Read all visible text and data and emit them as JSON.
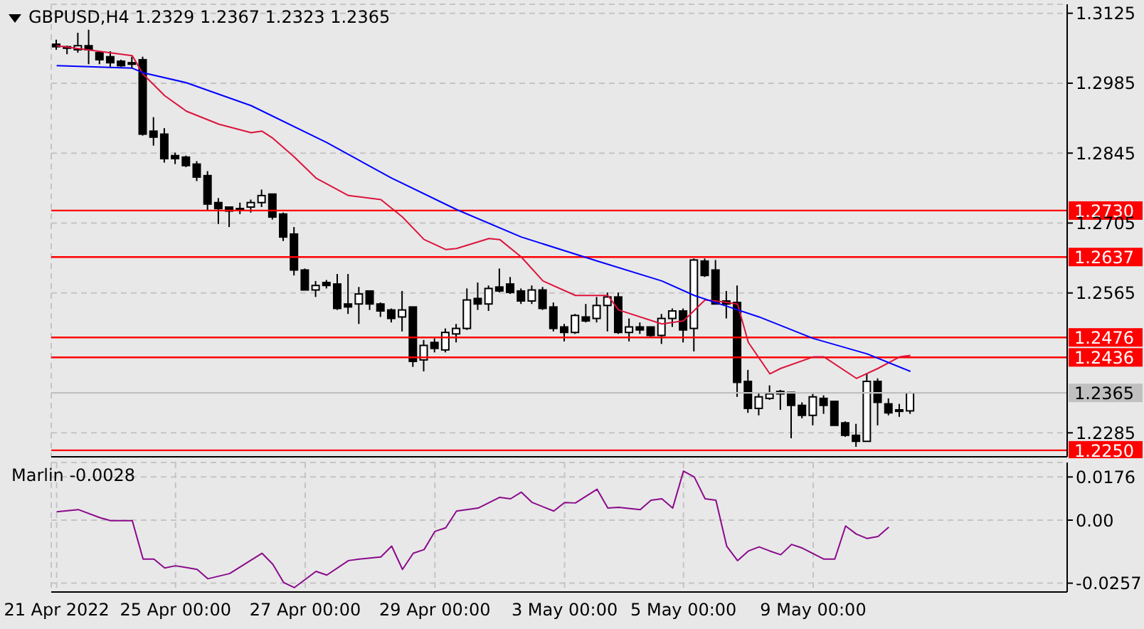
{
  "chart_data": [
    {
      "type": "candlestick",
      "title": "GBPUSD,H4 1.2329 1.2367 1.2323 1.2365",
      "categories": [
        null,
        null,
        null,
        null,
        null,
        null,
        null,
        null,
        null,
        null,
        null,
        null,
        null,
        null,
        null,
        null,
        null,
        null,
        null,
        null,
        null,
        null,
        null,
        null,
        null,
        null,
        null,
        null,
        null,
        null,
        null,
        null,
        null,
        null,
        null,
        null,
        null,
        null,
        null,
        null,
        null,
        null,
        null,
        null,
        null,
        null,
        null,
        null,
        null,
        null,
        null,
        null,
        null,
        null,
        null,
        null,
        null,
        null,
        null,
        null,
        null,
        null,
        null,
        null,
        null,
        null,
        null,
        null,
        null,
        null,
        null,
        null,
        null,
        null,
        null,
        null,
        null,
        null,
        null,
        null,
        null,
        null,
        null,
        null,
        null,
        null,
        null,
        null,
        null,
        null,
        null,
        null,
        null,
        null
      ],
      "ohlc": [
        [
          1.3063,
          1.3072,
          1.3052,
          1.3058
        ],
        [
          1.3058,
          1.306,
          1.3043,
          1.3055
        ],
        [
          1.3052,
          1.3086,
          1.3046,
          1.306
        ],
        [
          1.306,
          1.3092,
          1.3023,
          1.3052
        ],
        [
          1.3046,
          1.3049,
          1.3023,
          1.3032
        ],
        [
          1.3038,
          1.3049,
          1.3018,
          1.3026
        ],
        [
          1.3029,
          1.3032,
          1.3018,
          1.302
        ],
        [
          1.3026,
          1.3038,
          1.3015,
          1.3023
        ],
        [
          1.3032,
          1.3038,
          1.288,
          1.2883
        ],
        [
          1.2889,
          1.2917,
          1.286,
          1.2877
        ],
        [
          1.2883,
          1.2895,
          1.2826,
          1.2834
        ],
        [
          1.284,
          1.2846,
          1.2823,
          1.2834
        ],
        [
          1.2837,
          1.284,
          1.2817,
          1.282
        ],
        [
          1.2823,
          1.2829,
          1.2789,
          1.2797
        ],
        [
          1.28,
          1.2809,
          1.2729,
          1.2743
        ],
        [
          1.2746,
          1.2755,
          1.2703,
          1.2734
        ],
        [
          1.2737,
          1.2737,
          1.2697,
          1.2729
        ],
        [
          1.2732,
          1.2746,
          1.2723,
          1.2734
        ],
        [
          1.2737,
          1.2752,
          1.2726,
          1.2746
        ],
        [
          1.2746,
          1.2772,
          1.2737,
          1.276
        ],
        [
          1.2763,
          1.2763,
          1.2712,
          1.2717
        ],
        [
          1.2723,
          1.2726,
          1.2669,
          1.2677
        ],
        [
          1.2683,
          1.2697,
          1.26,
          1.2611
        ],
        [
          1.2611,
          1.2614,
          1.2571,
          1.2571
        ],
        [
          1.2571,
          1.2589,
          1.2557,
          1.258
        ],
        [
          1.2586,
          1.2591,
          1.2574,
          1.258
        ],
        [
          1.2583,
          1.2603,
          1.2531,
          1.2534
        ],
        [
          1.2543,
          1.2603,
          1.2523,
          1.2537
        ],
        [
          1.2543,
          1.2577,
          1.2503,
          1.2563
        ],
        [
          1.2569,
          1.2569,
          1.2531,
          1.2543
        ],
        [
          1.2543,
          1.2546,
          1.2517,
          1.2529
        ],
        [
          1.2531,
          1.2534,
          1.2506,
          1.2514
        ],
        [
          1.2517,
          1.2569,
          1.2488,
          1.2531
        ],
        [
          1.2537,
          1.2537,
          1.2417,
          1.2428
        ],
        [
          1.2431,
          1.2471,
          1.2408,
          1.246
        ],
        [
          1.2466,
          1.2474,
          1.2446,
          1.2454
        ],
        [
          1.2451,
          1.2494,
          1.2446,
          1.2486
        ],
        [
          1.2483,
          1.2503,
          1.2466,
          1.2494
        ],
        [
          1.2494,
          1.2574,
          1.2491,
          1.2551
        ],
        [
          1.2554,
          1.2586,
          1.2531,
          1.2543
        ],
        [
          1.2543,
          1.258,
          1.2529,
          1.2574
        ],
        [
          1.2577,
          1.2614,
          1.2566,
          1.2569
        ],
        [
          1.2583,
          1.2597,
          1.2563,
          1.2566
        ],
        [
          1.2569,
          1.2574,
          1.2543,
          1.2549
        ],
        [
          1.2549,
          1.258,
          1.2543,
          1.2571
        ],
        [
          1.2571,
          1.2577,
          1.2531,
          1.2534
        ],
        [
          1.2537,
          1.2546,
          1.2488,
          1.2494
        ],
        [
          1.2497,
          1.2503,
          1.2468,
          1.2486
        ],
        [
          1.2486,
          1.2523,
          1.2483,
          1.252
        ],
        [
          1.2517,
          1.2543,
          1.2506,
          1.2509
        ],
        [
          1.2514,
          1.2557,
          1.2506,
          1.254
        ],
        [
          1.254,
          1.2566,
          1.2488,
          1.2557
        ],
        [
          1.2557,
          1.2566,
          1.2483,
          1.2486
        ],
        [
          1.2486,
          1.2514,
          1.2468,
          1.2497
        ],
        [
          1.2497,
          1.2506,
          1.2483,
          1.2491
        ],
        [
          1.2497,
          1.2497,
          1.2477,
          1.248
        ],
        [
          1.248,
          1.2523,
          1.2463,
          1.2514
        ],
        [
          1.2514,
          1.2534,
          1.2497,
          1.2529
        ],
        [
          1.2529,
          1.2534,
          1.2466,
          1.2491
        ],
        [
          1.2494,
          1.2634,
          1.2448,
          1.2631
        ],
        [
          1.2629,
          1.2634,
          1.2597,
          1.26
        ],
        [
          1.2611,
          1.2631,
          1.2543,
          1.2543
        ],
        [
          1.2549,
          1.2569,
          1.2514,
          1.2543
        ],
        [
          1.2546,
          1.258,
          1.2357,
          1.2386
        ],
        [
          1.2388,
          1.2411,
          1.2325,
          1.2334
        ],
        [
          1.2334,
          1.2366,
          1.232,
          1.2357
        ],
        [
          1.2354,
          1.238,
          1.2351,
          1.2363
        ],
        [
          1.2368,
          1.2371,
          1.2331,
          1.2363
        ],
        [
          1.2366,
          1.2366,
          1.2274,
          1.234
        ],
        [
          1.234,
          1.2346,
          1.2314,
          1.232
        ],
        [
          1.232,
          1.2363,
          1.23,
          1.2357
        ],
        [
          1.2354,
          1.236,
          1.2323,
          1.234
        ],
        [
          1.2348,
          1.2348,
          1.23,
          1.23
        ],
        [
          1.2305,
          1.2308,
          1.2277,
          1.228
        ],
        [
          1.228,
          1.2303,
          1.2257,
          1.2268
        ],
        [
          1.2268,
          1.2403,
          1.2268,
          1.2388
        ],
        [
          1.2388,
          1.2394,
          1.23,
          1.2346
        ],
        [
          1.2343,
          1.2354,
          1.232,
          1.2325
        ],
        [
          1.2331,
          1.2343,
          1.2317,
          1.2328
        ],
        [
          1.2329,
          1.2367,
          1.2323,
          1.2365
        ],
        null,
        null,
        null,
        null,
        null,
        null,
        null,
        null,
        null,
        null,
        null,
        null,
        null,
        null
      ],
      "series": [
        {
          "type": "line",
          "color": "#dc143c",
          "values": [
            1.306,
            null,
            null,
            null,
            null,
            null,
            null,
            1.304,
            1.3003,
            null,
            1.296,
            null,
            1.2929,
            null,
            null,
            1.2903,
            null,
            null,
            1.2886,
            1.2889,
            1.2875,
            null,
            1.2837,
            null,
            1.2795,
            null,
            null,
            1.276,
            null,
            null,
            1.2752,
            null,
            1.2717,
            null,
            1.2672,
            null,
            1.2652,
            1.2654,
            null,
            null,
            1.2674,
            1.2672,
            null,
            1.2637,
            null,
            1.2589,
            null,
            null,
            1.256,
            null,
            null,
            1.256,
            1.2531,
            null,
            null,
            null,
            1.2503,
            null,
            1.2509,
            null,
            1.2551,
            1.2549,
            null,
            1.2543,
            1.2466,
            null,
            1.2403,
            1.2414,
            null,
            null,
            1.2437,
            1.2437,
            null,
            null,
            1.2394,
            null,
            1.2414,
            null,
            1.2437,
            1.244,
            null,
            null,
            null,
            null,
            null,
            null,
            null,
            null,
            null,
            null,
            null,
            null,
            null,
            null
          ]
        },
        {
          "type": "line",
          "color": "#0000ff",
          "values": [
            1.302,
            null,
            null,
            null,
            null,
            null,
            null,
            1.3015,
            1.3006,
            null,
            null,
            null,
            1.2986,
            null,
            null,
            null,
            null,
            null,
            1.294,
            null,
            null,
            null,
            null,
            null,
            null,
            1.2866,
            null,
            null,
            null,
            null,
            null,
            1.2795,
            null,
            null,
            null,
            null,
            null,
            1.2732,
            null,
            null,
            null,
            null,
            null,
            1.2677,
            null,
            null,
            null,
            null,
            null,
            null,
            1.2629,
            null,
            null,
            null,
            null,
            null,
            1.2589,
            null,
            null,
            1.256,
            null,
            null,
            null,
            null,
            null,
            1.2517,
            null,
            null,
            null,
            null,
            1.2474,
            null,
            null,
            null,
            null,
            1.2443,
            null,
            null,
            null,
            1.2408,
            null,
            null,
            null,
            null,
            null,
            null,
            null,
            null,
            null,
            null,
            null,
            null,
            null,
            null
          ]
        }
      ],
      "ref_lines": [
        {
          "axis": "y",
          "value": 1.273,
          "label": "1.2730",
          "color": "#ff0000"
        },
        {
          "axis": "y",
          "value": 1.2637,
          "label": "1.2637",
          "color": "#ff0000"
        },
        {
          "axis": "y",
          "value": 1.2476,
          "label": "1.2476",
          "color": "#ff0000"
        },
        {
          "axis": "y",
          "value": 1.2436,
          "label": "1.2436",
          "color": "#ff0000"
        },
        {
          "axis": "y",
          "value": 1.225,
          "label": "1.2250",
          "color": "#ff0000"
        },
        {
          "axis": "y",
          "value": 1.2365,
          "label": "1.2365",
          "color": "#c0c0c0"
        }
      ],
      "ylim": [
        1.2237,
        1.3143
      ],
      "yticks": [
        1.3125,
        1.2985,
        1.2845,
        1.2705,
        1.2565,
        1.2285
      ],
      "grid": true,
      "tick_labels": "y"
    },
    {
      "type": "line",
      "title": "Marlin -0.0028",
      "categories": [
        "21 Apr 2022",
        null,
        null,
        null,
        null,
        null,
        null,
        null,
        null,
        null,
        null,
        "25 Apr 00:00",
        null,
        null,
        null,
        null,
        null,
        null,
        null,
        null,
        null,
        null,
        null,
        "27 Apr 00:00",
        null,
        null,
        null,
        null,
        null,
        null,
        null,
        null,
        null,
        null,
        null,
        "29 Apr 00:00",
        null,
        null,
        null,
        null,
        null,
        null,
        null,
        null,
        null,
        null,
        null,
        "3 May 00:00",
        null,
        null,
        null,
        null,
        null,
        null,
        null,
        null,
        null,
        null,
        "5 May 00:00",
        null,
        null,
        null,
        null,
        null,
        null,
        null,
        null,
        null,
        null,
        null,
        "9 May 00:00",
        null,
        null,
        null,
        null,
        null,
        null,
        null,
        null,
        null,
        null,
        null,
        null,
        null,
        null,
        null,
        null,
        null,
        null,
        null,
        null,
        null,
        null,
        null
      ],
      "series": [
        {
          "color": "#8b0a8b",
          "values": [
            0.0034,
            null,
            0.0043,
            null,
            0.001,
            -0.0002,
            null,
            -0.0002,
            -0.0159,
            -0.0159,
            -0.0195,
            -0.0186,
            null,
            -0.0201,
            -0.0239,
            null,
            -0.0218,
            null,
            null,
            -0.0135,
            -0.018,
            -0.0254,
            -0.0275,
            null,
            -0.0209,
            -0.0224,
            null,
            -0.0165,
            -0.0159,
            null,
            -0.015,
            -0.0106,
            -0.0201,
            -0.0135,
            -0.012,
            -0.0046,
            -0.0031,
            0.0037,
            null,
            0.0049,
            null,
            0.0093,
            0.0087,
            0.0114,
            0.0072,
            null,
            0.0037,
            0.0072,
            0.007,
            null,
            0.0126,
            0.0049,
            0.0052,
            null,
            0.0043,
            0.0081,
            0.0087,
            0.0049,
            0.02,
            0.0176,
            0.0087,
            0.0081,
            -0.0106,
            -0.0165,
            -0.0126,
            -0.0109,
            -0.0126,
            -0.0141,
            -0.0099,
            -0.0114,
            null,
            -0.0159,
            -0.0159,
            -0.0024,
            -0.0057,
            -0.0075,
            -0.0067,
            -0.0028,
            null,
            null,
            null,
            null,
            null,
            null,
            null,
            null,
            null,
            null,
            null,
            null,
            null,
            null,
            null,
            null
          ]
        }
      ],
      "ylim": [
        -0.0293,
        0.0235
      ],
      "yticks": [
        0.0176,
        {
          "value": 0,
          "label": "0.00"
        },
        -0.0257
      ],
      "grid": true
    }
  ]
}
